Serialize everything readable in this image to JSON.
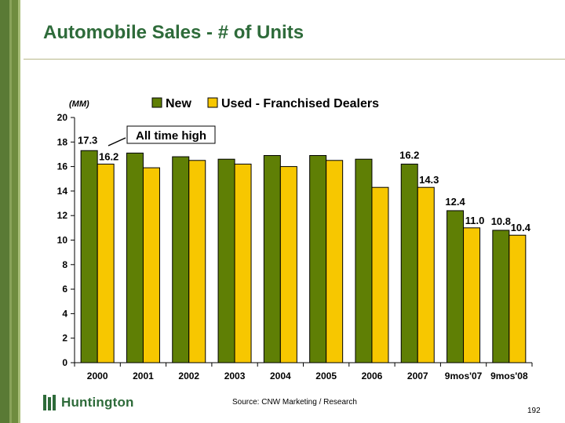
{
  "slide": {
    "title": "Automobile Sales - # of Units",
    "source": "Source: CNW Marketing / Research",
    "page_number": "192",
    "logo_text": "Huntington"
  },
  "colors": {
    "new": "#5f7f05",
    "used": "#f7c700",
    "title": "#2e6b3a"
  },
  "chart_data": {
    "type": "bar",
    "unit_label": "(MM)",
    "categories": [
      "2000",
      "2001",
      "2002",
      "2003",
      "2004",
      "2005",
      "2006",
      "2007",
      "9mos'07",
      "9mos'08"
    ],
    "series": [
      {
        "name": "New",
        "values": [
          17.3,
          17.1,
          16.8,
          16.6,
          16.9,
          16.9,
          16.6,
          16.2,
          12.4,
          10.8
        ]
      },
      {
        "name": "Used - Franchised Dealers",
        "values": [
          16.2,
          15.9,
          16.5,
          16.2,
          16.0,
          16.5,
          14.3,
          14.3,
          11.0,
          10.4
        ]
      }
    ],
    "data_labels": [
      {
        "series": 0,
        "index": 0,
        "text": "17.3"
      },
      {
        "series": 1,
        "index": 0,
        "text": "16.2"
      },
      {
        "series": 0,
        "index": 7,
        "text": "16.2"
      },
      {
        "series": 1,
        "index": 7,
        "text": "14.3"
      },
      {
        "series": 0,
        "index": 8,
        "text": "12.4"
      },
      {
        "series": 1,
        "index": 8,
        "text": "11.0"
      },
      {
        "series": 0,
        "index": 9,
        "text": "10.8"
      },
      {
        "series": 1,
        "index": 9,
        "text": "10.4"
      }
    ],
    "yticks": [
      0,
      2,
      4,
      6,
      8,
      10,
      12,
      14,
      16,
      18,
      20
    ],
    "ylim": [
      0,
      20
    ],
    "grid": false,
    "legend_position": "top",
    "annotation": "All time high"
  }
}
